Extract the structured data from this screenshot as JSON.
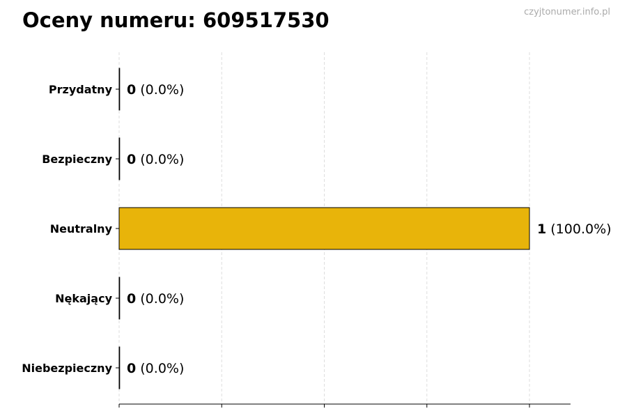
{
  "title": "Oceny numeru: 609517530",
  "watermark": "czyjtonumer.info.pl",
  "chart_data": {
    "type": "bar",
    "orientation": "horizontal",
    "title": "Oceny numeru: 609517530",
    "categories": [
      "Przydatny",
      "Bezpieczny",
      "Neutralny",
      "Nękający",
      "Niebezpieczny"
    ],
    "values": [
      0,
      0,
      1,
      0,
      0
    ],
    "percent_labels": [
      "(0.0%)",
      "(0.0%)",
      "(100.0%)",
      "(0.0%)",
      "(0.0%)"
    ],
    "xlim": [
      0,
      1.1
    ],
    "xticks": [
      0,
      0.25,
      0.5,
      0.75,
      1
    ],
    "xtick_labels_shown": false,
    "grid": "vertical dashed",
    "bar_color": "#E8B40A",
    "bar_edge_color": "#000000"
  }
}
